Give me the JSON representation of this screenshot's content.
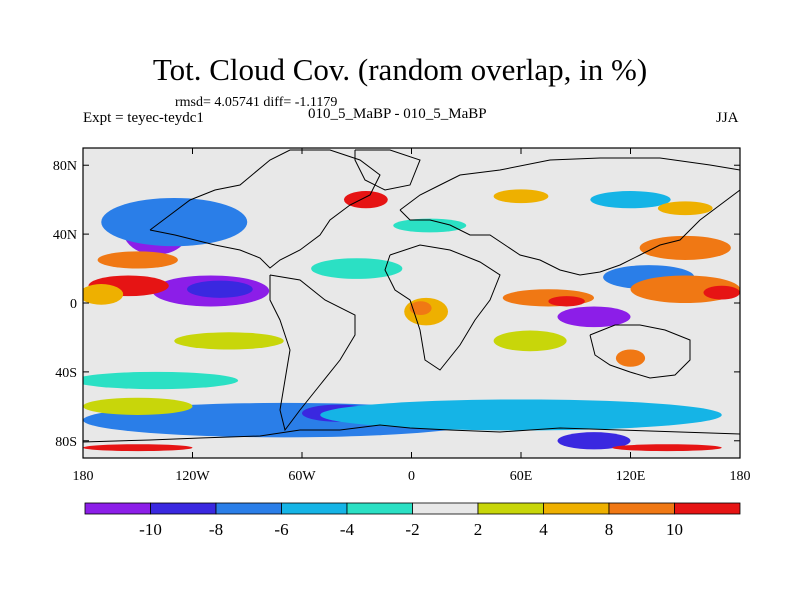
{
  "header": {
    "title": "Tot. Cloud Cov. (random overlap, in %)",
    "stats": "rmsd= 4.05741 diff= -1.1179",
    "experiment": "Expt = teyec-teydc1",
    "exp_names": "010_5_MaBP - 010_5_MaBP",
    "season": "JJA"
  },
  "map": {
    "projection": "cylindrical-equidistant",
    "lon_range": [
      -180,
      180
    ],
    "lat_range": [
      -90,
      90
    ],
    "background_color": "#e8e8e8",
    "outline_color": "#000000",
    "lon_ticks": [
      {
        "value": -180,
        "label": "180"
      },
      {
        "value": -120,
        "label": "120W"
      },
      {
        "value": -60,
        "label": "60W"
      },
      {
        "value": 0,
        "label": "0"
      },
      {
        "value": 60,
        "label": "60E"
      },
      {
        "value": 120,
        "label": "120E"
      },
      {
        "value": 180,
        "label": "180"
      }
    ],
    "lat_ticks": [
      {
        "value": 80,
        "label": "80N"
      },
      {
        "value": 40,
        "label": "40N"
      },
      {
        "value": 0,
        "label": "0"
      },
      {
        "value": -40,
        "label": "40S"
      },
      {
        "value": -80,
        "label": "80S"
      }
    ]
  },
  "colorbar": {
    "levels": [
      "-10",
      "-8",
      "-6",
      "-4",
      "-2",
      "2",
      "4",
      "8",
      "10"
    ],
    "colors": [
      "#8c1ee8",
      "#3a28e0",
      "#2a7ee8",
      "#15b4e6",
      "#2be0c4",
      "#e8e8e8",
      "#c8d60a",
      "#eeb000",
      "#f07814",
      "#e61414"
    ]
  },
  "chart_data": {
    "type": "heatmap",
    "title": "Tot. Cloud Cov. (random overlap, in %)",
    "units": "%",
    "contour_levels": [
      -10,
      -8,
      -6,
      -4,
      -2,
      2,
      4,
      8,
      10
    ],
    "features": [
      {
        "class": -5,
        "lon": -110,
        "lat": 7,
        "rx": 32,
        "ry": 9
      },
      {
        "class": -4,
        "lon": -105,
        "lat": 8,
        "rx": 18,
        "ry": 5
      },
      {
        "class": -5,
        "lon": -140,
        "lat": 42,
        "rx": 18,
        "ry": 14
      },
      {
        "class": -4,
        "lon": -137,
        "lat": 42,
        "rx": 8,
        "ry": 6
      },
      {
        "class": -3,
        "lon": -130,
        "lat": 47,
        "rx": 40,
        "ry": 14
      },
      {
        "class": 4,
        "lon": -155,
        "lat": 10,
        "rx": 22,
        "ry": 6
      },
      {
        "class": 3,
        "lon": -150,
        "lat": 25,
        "rx": 22,
        "ry": 5
      },
      {
        "class": 2,
        "lon": -170,
        "lat": 5,
        "rx": 12,
        "ry": 6
      },
      {
        "class": -1,
        "lon": -140,
        "lat": -45,
        "rx": 45,
        "ry": 5
      },
      {
        "class": -3,
        "lon": -70,
        "lat": -68,
        "rx": 110,
        "ry": 10
      },
      {
        "class": -4,
        "lon": -40,
        "lat": -64,
        "rx": 20,
        "ry": 5
      },
      {
        "class": -2,
        "lon": 60,
        "lat": -65,
        "rx": 110,
        "ry": 9
      },
      {
        "class": -4,
        "lon": 100,
        "lat": -80,
        "rx": 20,
        "ry": 5
      },
      {
        "class": 4,
        "lon": -150,
        "lat": -84,
        "rx": 30,
        "ry": 2
      },
      {
        "class": 4,
        "lon": 140,
        "lat": -84,
        "rx": 30,
        "ry": 2
      },
      {
        "class": 1,
        "lon": -100,
        "lat": -22,
        "rx": 30,
        "ry": 5
      },
      {
        "class": 2,
        "lon": 8,
        "lat": -5,
        "rx": 12,
        "ry": 8
      },
      {
        "class": 3,
        "lon": 5,
        "lat": -3,
        "rx": 6,
        "ry": 4
      },
      {
        "class": 3,
        "lon": 75,
        "lat": 3,
        "rx": 25,
        "ry": 5
      },
      {
        "class": 4,
        "lon": 85,
        "lat": 1,
        "rx": 10,
        "ry": 3
      },
      {
        "class": 1,
        "lon": 65,
        "lat": -22,
        "rx": 20,
        "ry": 6
      },
      {
        "class": -5,
        "lon": 100,
        "lat": -8,
        "rx": 20,
        "ry": 6
      },
      {
        "class": -3,
        "lon": 130,
        "lat": 15,
        "rx": 25,
        "ry": 7
      },
      {
        "class": 3,
        "lon": 150,
        "lat": 8,
        "rx": 30,
        "ry": 8
      },
      {
        "class": 4,
        "lon": 170,
        "lat": 6,
        "rx": 10,
        "ry": 4
      },
      {
        "class": 3,
        "lon": 150,
        "lat": 32,
        "rx": 25,
        "ry": 7
      },
      {
        "class": -2,
        "lon": 120,
        "lat": 60,
        "rx": 22,
        "ry": 5
      },
      {
        "class": 2,
        "lon": 150,
        "lat": 55,
        "rx": 15,
        "ry": 4
      },
      {
        "class": 4,
        "lon": -25,
        "lat": 60,
        "rx": 12,
        "ry": 5
      },
      {
        "class": 2,
        "lon": 60,
        "lat": 62,
        "rx": 15,
        "ry": 4
      },
      {
        "class": -1,
        "lon": -30,
        "lat": 20,
        "rx": 25,
        "ry": 6
      },
      {
        "class": -1,
        "lon": 10,
        "lat": 45,
        "rx": 20,
        "ry": 4
      },
      {
        "class": 3,
        "lon": 120,
        "lat": -32,
        "rx": 8,
        "ry": 5
      },
      {
        "class": 1,
        "lon": -150,
        "lat": -60,
        "rx": 30,
        "ry": 5
      }
    ],
    "xlabel": "",
    "ylabel": ""
  }
}
